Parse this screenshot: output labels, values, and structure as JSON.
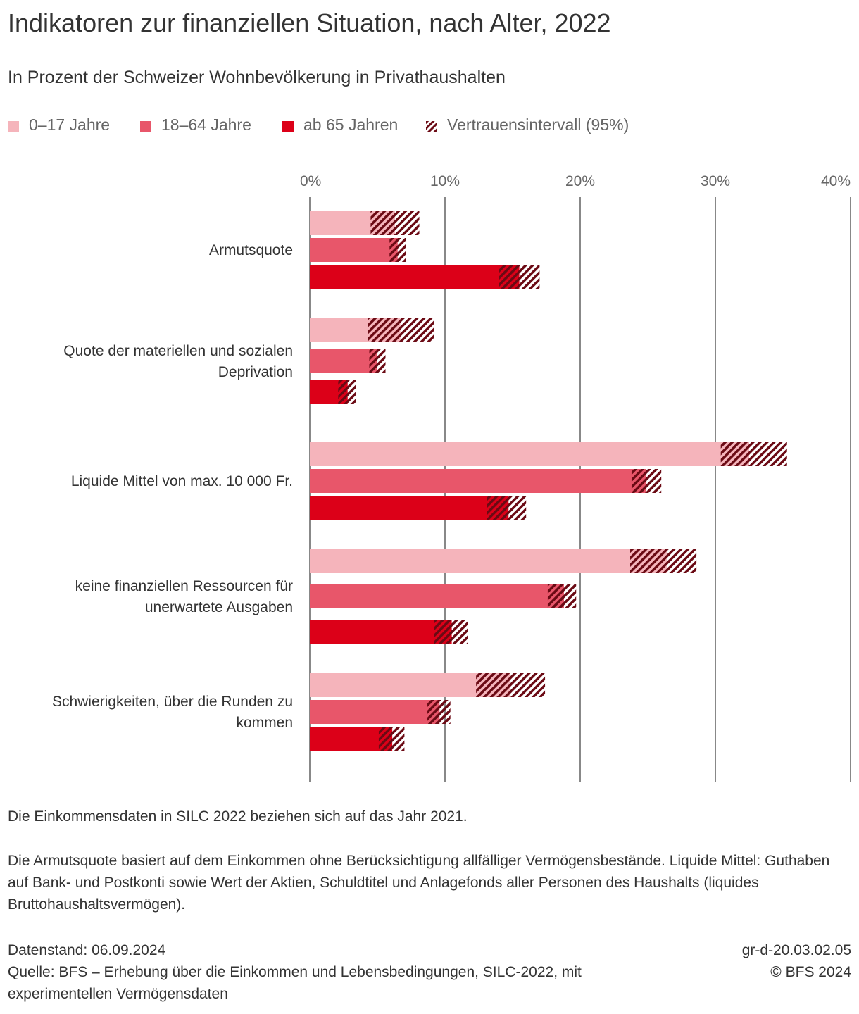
{
  "title": "Indikatoren zur finanziellen Situation, nach Alter, 2022",
  "subtitle": "In Prozent der Schweizer Wohnbevölkerung in Privathaushalten",
  "legend": [
    {
      "label": "0–17 Jahre",
      "color": "#f5b4bb",
      "pattern": false
    },
    {
      "label": "18–64 Jahre",
      "color": "#e8566a",
      "pattern": false
    },
    {
      "label": "ab 65 Jahren",
      "color": "#dc0018",
      "pattern": false
    },
    {
      "label": "Vertrauensintervall (95%)",
      "color": "#6b0a14",
      "pattern": true
    }
  ],
  "chart_data": {
    "type": "bar",
    "orientation": "horizontal",
    "x_ticks": [
      "0%",
      "10%",
      "20%",
      "30%",
      "40%"
    ],
    "xlim": [
      0,
      40
    ],
    "grid": true,
    "categories": [
      "Armutsquote",
      "Quote der materiellen und sozialen Deprivation",
      "Liquide Mittel von max. 10 000 Fr.",
      "keine finanziellen Ressourcen für unerwartete Ausgaben",
      "Schwierigkeiten, über die Runden zu kommen"
    ],
    "category_lines": [
      [
        "Armutsquote"
      ],
      [
        "Quote der materiellen und sozialen",
        "Deprivation"
      ],
      [
        "Liquide Mittel von max. 10 000 Fr."
      ],
      [
        "keine finanziellen Ressourcen für",
        "unerwartete Ausgaben"
      ],
      [
        "Schwierigkeiten, über die Runden zu",
        "kommen"
      ]
    ],
    "series": [
      {
        "name": "0–17 Jahre",
        "color": "#f5b4bb",
        "values": [
          6.3,
          6.7,
          32.5,
          26.4,
          14.8
        ],
        "ci_low": [
          4.5,
          4.3,
          30.4,
          23.7,
          12.3
        ],
        "ci_high": [
          8.1,
          9.2,
          35.3,
          28.6,
          17.4
        ]
      },
      {
        "name": "18–64 Jahre",
        "color": "#e8566a",
        "values": [
          6.5,
          5.0,
          24.9,
          18.8,
          9.6
        ],
        "ci_low": [
          5.9,
          4.4,
          23.8,
          17.6,
          8.7
        ],
        "ci_high": [
          7.1,
          5.6,
          26.0,
          19.7,
          10.4
        ]
      },
      {
        "name": "ab 65 Jahren",
        "color": "#dc0018",
        "values": [
          15.5,
          2.8,
          14.7,
          10.5,
          6.1
        ],
        "ci_low": [
          14.0,
          2.1,
          13.1,
          9.2,
          5.1
        ],
        "ci_high": [
          17.0,
          3.4,
          16.0,
          11.7,
          7.0
        ]
      }
    ]
  },
  "notes": [
    "Die Einkommensdaten in SILC 2022 beziehen sich auf das Jahr 2021.",
    "Die Armutsquote basiert auf dem Einkommen ohne Berücksichtigung allfälliger Vermögensbestände. Liquide Mittel: Guthaben auf Bank- und Postkonti sowie Wert der Aktien, Schuldtitel und Anlagefonds aller Personen des Haushalts (liquides Bruttohaushaltsvermögen)."
  ],
  "footer": {
    "date": "Datenstand: 06.09.2024",
    "source": "Quelle: BFS – Erhebung über die Einkommen und Lebensbedingungen, SILC-2022, mit experimentellen Vermögensdaten",
    "code": "gr-d-20.03.02.05",
    "copyright": "© BFS 2024"
  }
}
